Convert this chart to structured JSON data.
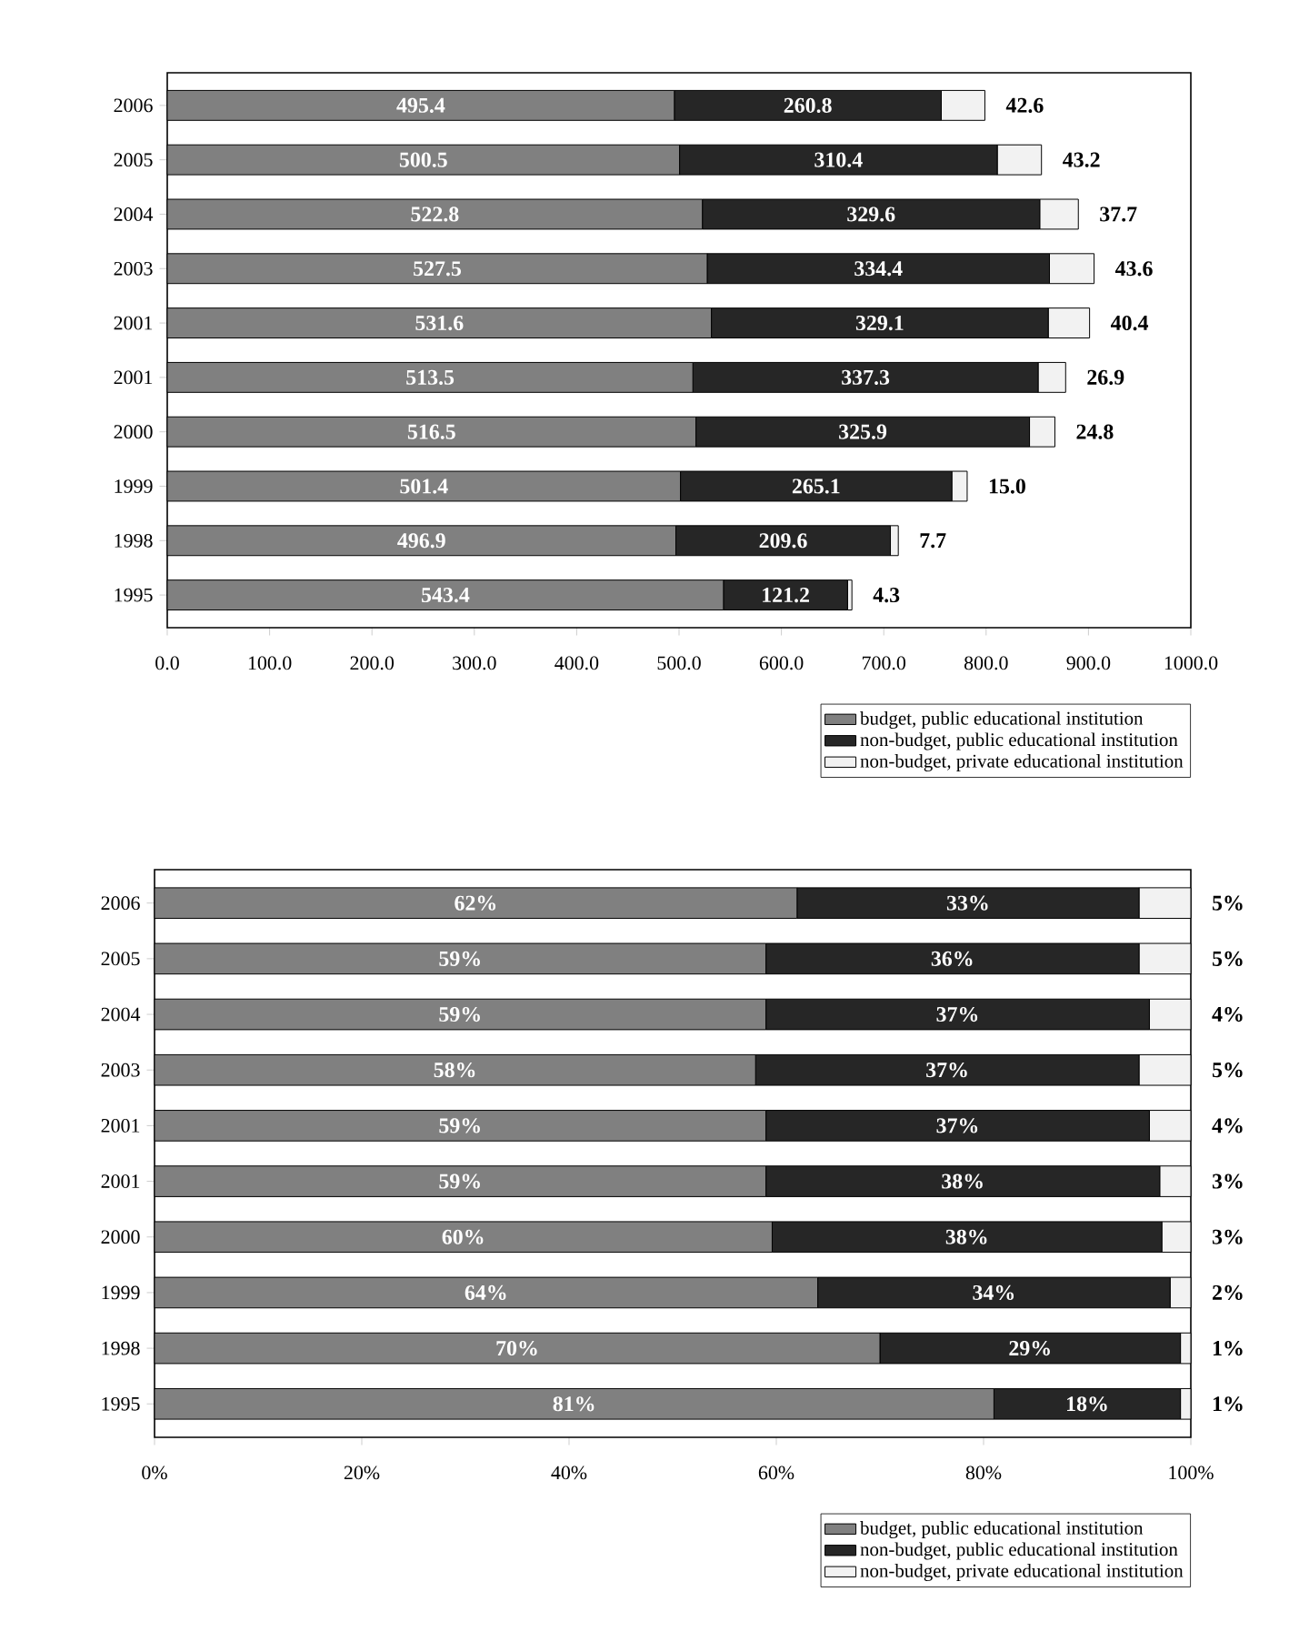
{
  "chart_data": [
    {
      "type": "bar",
      "orientation": "horizontal",
      "stacked": true,
      "categories": [
        "2006",
        "2005",
        "2004",
        "2003",
        "2001",
        "2001",
        "2000",
        "1999",
        "1998",
        "1995"
      ],
      "series": [
        {
          "name": "budget, public educational institution",
          "color": "#808080",
          "values": [
            495.4,
            500.5,
            522.8,
            527.5,
            531.6,
            513.5,
            516.5,
            501.4,
            496.9,
            543.4
          ],
          "value_labels": [
            "495.4",
            "500.5",
            "522.8",
            "527.5",
            "531.6",
            "513.5",
            "516.5",
            "501.4",
            "496.9",
            "543.4"
          ]
        },
        {
          "name": "non-budget, public educational institution",
          "color": "#262626",
          "values": [
            260.8,
            310.4,
            329.6,
            334.4,
            329.1,
            337.3,
            325.9,
            265.1,
            209.6,
            121.2
          ],
          "value_labels": [
            "260.8",
            "310.4",
            "329.6",
            "334.4",
            "329.1",
            "337.3",
            "325.9",
            "265.1",
            "209.6",
            "121.2"
          ]
        },
        {
          "name": "non-budget, private educational institution",
          "color": "#f2f2f2",
          "values": [
            42.6,
            43.2,
            37.7,
            43.6,
            40.4,
            26.9,
            24.8,
            15.0,
            7.7,
            4.3
          ],
          "value_labels": [
            "42.6",
            "43.2",
            "37.7",
            "43.6",
            "40.4",
            "26.9",
            "24.8",
            "15.0",
            "7.7",
            "4.3"
          ]
        }
      ],
      "xlim": [
        0,
        1000
      ],
      "xticks": [
        {
          "value": 0,
          "label": "0.0"
        },
        {
          "value": 100,
          "label": "100.0"
        },
        {
          "value": 200,
          "label": "200.0"
        },
        {
          "value": 300,
          "label": "300.0"
        },
        {
          "value": 400,
          "label": "400.0"
        },
        {
          "value": 500,
          "label": "500.0"
        },
        {
          "value": 600,
          "label": "600.0"
        },
        {
          "value": 700,
          "label": "700.0"
        },
        {
          "value": 800,
          "label": "800.0"
        },
        {
          "value": 900,
          "label": "900.0"
        },
        {
          "value": 1000,
          "label": "1000.0"
        }
      ],
      "legend": "bottom right"
    },
    {
      "type": "bar",
      "orientation": "horizontal",
      "stacked": true,
      "categories": [
        "2006",
        "2005",
        "2004",
        "2003",
        "2001",
        "2001",
        "2000",
        "1999",
        "1998",
        "1995"
      ],
      "series": [
        {
          "name": "budget, public educational institution",
          "color": "#808080",
          "values": [
            62,
            59,
            59,
            58,
            59,
            59,
            59.6,
            64,
            70,
            81
          ],
          "value_labels": [
            "62%",
            "59%",
            "59%",
            "58%",
            "59%",
            "59%",
            "60%",
            "64%",
            "70%",
            "81%"
          ]
        },
        {
          "name": "non-budget, public educational institution",
          "color": "#262626",
          "values": [
            33,
            36,
            37,
            37,
            37,
            38,
            37.6,
            34,
            29,
            18
          ],
          "value_labels": [
            "33%",
            "36%",
            "37%",
            "37%",
            "37%",
            "38%",
            "38%",
            "34%",
            "29%",
            "18%"
          ]
        },
        {
          "name": "non-budget, private educational institution",
          "color": "#f2f2f2",
          "values": [
            5,
            5,
            4,
            5,
            4,
            3,
            2.8,
            2,
            1,
            1
          ],
          "value_labels": [
            "5%",
            "5%",
            "4%",
            "5%",
            "4%",
            "3%",
            "3%",
            "2%",
            "1%",
            "1%"
          ]
        }
      ],
      "xlim": [
        0,
        100
      ],
      "xticks": [
        {
          "value": 0,
          "label": "0%"
        },
        {
          "value": 20,
          "label": "20%"
        },
        {
          "value": 40,
          "label": "40%"
        },
        {
          "value": 60,
          "label": "60%"
        },
        {
          "value": 80,
          "label": "80%"
        },
        {
          "value": 100,
          "label": "100%"
        }
      ],
      "legend": "bottom right"
    }
  ]
}
